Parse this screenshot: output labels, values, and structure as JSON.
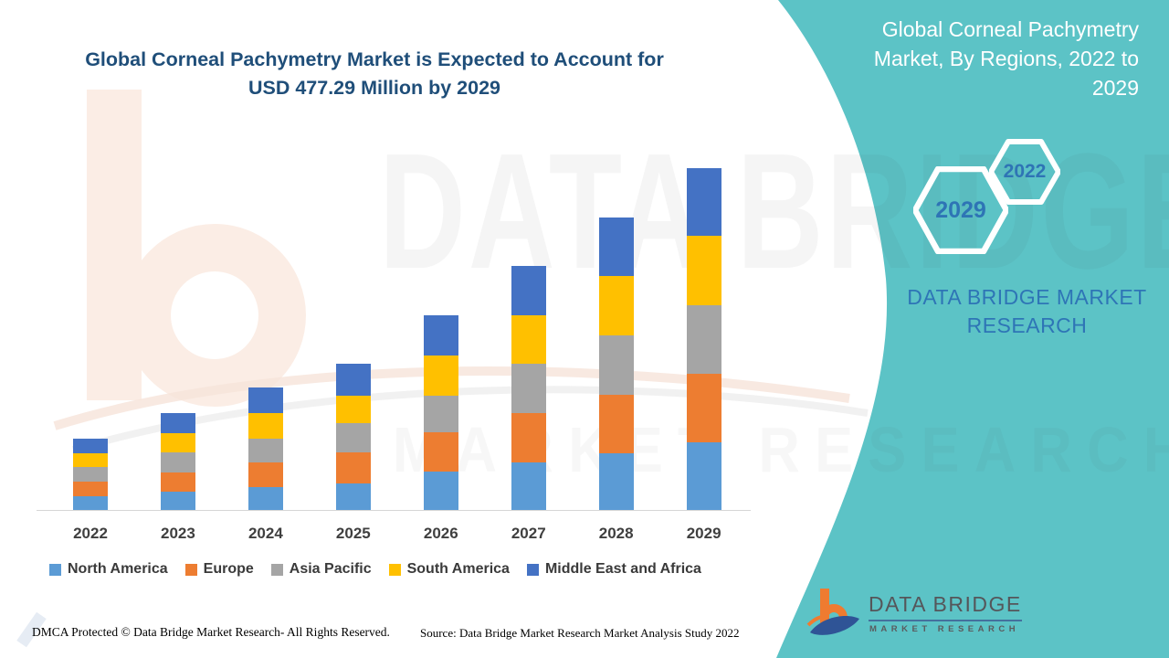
{
  "left": {
    "title": "Global Corneal Pachymetry Market is Expected to Account for\nUSD 477.29 Million by 2029"
  },
  "watermark": {
    "brand": "DATA BRIDGE",
    "sub": "MARKET RESEARCH"
  },
  "panel": {
    "title": "Global Corneal Pachymetry Market, By Regions, 2022 to 2029",
    "hex_big_label": "2029",
    "hex_small_label": "2022",
    "brand_text": "DATA BRIDGE MARKET RESEARCH"
  },
  "logo": {
    "name": "DATA BRIDGE",
    "sub": "MARKET RESEARCH"
  },
  "footer": {
    "dmca": "DMCA Protected © Data Bridge Market Research- All Rights Reserved.",
    "source": "Source: Data Bridge Market Research Market Analysis Study 2022"
  },
  "theme": {
    "teal": "#5CC3C6",
    "title_blue": "#1F4E79",
    "panel_text": "#FFFFFF",
    "hex_number_blue": "#2E74B5",
    "brand_blue": "#2E75B6",
    "legend_text": "#3A3A3A"
  },
  "chart_data": {
    "type": "bar",
    "stacked": true,
    "title": "Global Corneal Pachymetry Market is Expected to Account for USD 477.29 Million by 2029",
    "unit": "USD Million",
    "values_are_estimates": true,
    "annotations": [
      "USD 477.29 Million by 2029"
    ],
    "categories": [
      "2022",
      "2023",
      "2024",
      "2025",
      "2026",
      "2027",
      "2028",
      "2029"
    ],
    "series": [
      {
        "name": "North America",
        "color": "#5B9BD5",
        "values": [
          18.7,
          25.1,
          32.3,
          37.0,
          53.2,
          65.9,
          78.7,
          94.9
        ]
      },
      {
        "name": "Europe",
        "color": "#ED7D31",
        "values": [
          21.2,
          27.5,
          34.0,
          43.0,
          55.2,
          69.2,
          82.5,
          95.7
        ]
      },
      {
        "name": "Asia Pacific",
        "color": "#A5A5A5",
        "values": [
          20.0,
          27.7,
          33.1,
          41.2,
          51.5,
          68.5,
          82.3,
          95.6
        ]
      },
      {
        "name": "South America",
        "color": "#FFC000",
        "values": [
          19.5,
          26.8,
          36.1,
          38.8,
          56.1,
          68.5,
          82.9,
          96.4
        ]
      },
      {
        "name": "Middle East and Africa",
        "color": "#4472C4",
        "values": [
          20.0,
          27.7,
          34.9,
          43.7,
          56.1,
          67.9,
          81.6,
          94.69
        ]
      }
    ],
    "totals_estimated": [
      99.4,
      134.8,
      170.4,
      203.7,
      272.1,
      340.0,
      408.0,
      477.29
    ],
    "xlabel": "",
    "ylabel": "",
    "gridlines": false,
    "y_axis_visible": false,
    "legend_position": "bottom"
  }
}
